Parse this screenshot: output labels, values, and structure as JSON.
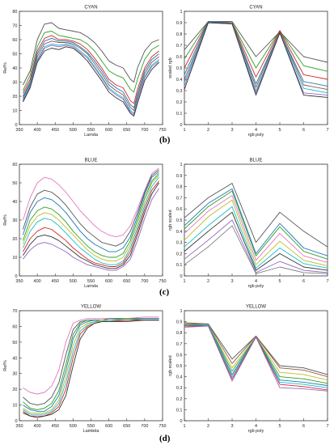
{
  "panel_labels": [
    "(b)",
    "(c)",
    "(d)"
  ],
  "chart_data": [
    {
      "type": "line",
      "title": "CYAN",
      "xlabel": "Lamda",
      "ylabel": "Ref%",
      "xlim": [
        350,
        750
      ],
      "ylim": [
        0,
        80
      ],
      "xticks": [
        350,
        400,
        450,
        500,
        550,
        600,
        650,
        700,
        750
      ],
      "yticks": [
        0,
        10,
        20,
        30,
        40,
        50,
        60,
        70,
        80
      ],
      "x": [
        360,
        380,
        400,
        420,
        440,
        460,
        480,
        500,
        520,
        540,
        560,
        580,
        600,
        620,
        640,
        660,
        670,
        680,
        700,
        720,
        740
      ],
      "series": [
        {
          "color": "#555555",
          "values": [
            28,
            38,
            60,
            71,
            72,
            68,
            67,
            66,
            65,
            62,
            58,
            52,
            45,
            42,
            40,
            32,
            30,
            40,
            52,
            58,
            60
          ]
        },
        {
          "color": "#2ca02c",
          "values": [
            24,
            35,
            55,
            65,
            66,
            63,
            62,
            61,
            60,
            57,
            52,
            45,
            38,
            35,
            33,
            25,
            23,
            32,
            46,
            53,
            56
          ]
        },
        {
          "color": "#d62728",
          "values": [
            22,
            32,
            52,
            61,
            63,
            60,
            60,
            59,
            57,
            53,
            47,
            40,
            32,
            28,
            26,
            17,
            15,
            25,
            40,
            48,
            52
          ]
        },
        {
          "color": "#1f77b4",
          "values": [
            20,
            30,
            50,
            59,
            61,
            59,
            59,
            58,
            55,
            51,
            45,
            38,
            30,
            26,
            23,
            14,
            12,
            22,
            38,
            46,
            50
          ]
        },
        {
          "color": "#8c564b",
          "values": [
            19,
            29,
            48,
            57,
            59,
            58,
            58,
            57,
            54,
            50,
            43,
            36,
            28,
            24,
            21,
            12,
            10,
            20,
            36,
            44,
            48
          ]
        },
        {
          "color": "#17becf",
          "values": [
            18,
            28,
            46,
            55,
            57,
            56,
            57,
            56,
            52,
            48,
            41,
            34,
            26,
            22,
            19,
            10,
            8,
            18,
            34,
            42,
            46
          ]
        },
        {
          "color": "#9467bd",
          "values": [
            17,
            27,
            45,
            54,
            56,
            55,
            56,
            55,
            51,
            47,
            40,
            33,
            25,
            21,
            18,
            9,
            7,
            17,
            33,
            41,
            45
          ]
        },
        {
          "color": "#333333",
          "values": [
            16,
            26,
            44,
            52,
            54,
            53,
            55,
            54,
            50,
            45,
            38,
            31,
            23,
            19,
            16,
            8,
            6,
            15,
            31,
            39,
            44
          ]
        }
      ]
    },
    {
      "type": "line",
      "title": "CYAN",
      "xlabel": "rgb poly",
      "ylabel": "scaled rgb",
      "xlim": [
        1,
        7
      ],
      "ylim": [
        0,
        1
      ],
      "xticks": [
        1,
        2,
        3,
        4,
        5,
        6,
        7
      ],
      "yticks": [
        0,
        0.1,
        0.2,
        0.3,
        0.4,
        0.5,
        0.6,
        0.7,
        0.8,
        0.9,
        1
      ],
      "x": [
        1,
        2,
        3,
        4,
        5,
        6,
        7
      ],
      "series": [
        {
          "color": "#555555",
          "values": [
            0.66,
            0.91,
            0.91,
            0.6,
            0.82,
            0.6,
            0.55
          ]
        },
        {
          "color": "#2ca02c",
          "values": [
            0.58,
            0.91,
            0.9,
            0.5,
            0.83,
            0.52,
            0.47
          ]
        },
        {
          "color": "#d62728",
          "values": [
            0.5,
            0.91,
            0.9,
            0.42,
            0.83,
            0.44,
            0.4
          ]
        },
        {
          "color": "#1f77b4",
          "values": [
            0.44,
            0.91,
            0.9,
            0.36,
            0.82,
            0.38,
            0.34
          ]
        },
        {
          "color": "#8c564b",
          "values": [
            0.4,
            0.9,
            0.9,
            0.33,
            0.82,
            0.35,
            0.31
          ]
        },
        {
          "color": "#17becf",
          "values": [
            0.37,
            0.9,
            0.89,
            0.3,
            0.81,
            0.32,
            0.28
          ]
        },
        {
          "color": "#9467bd",
          "values": [
            0.34,
            0.9,
            0.89,
            0.28,
            0.81,
            0.28,
            0.26
          ]
        },
        {
          "color": "#333333",
          "values": [
            0.31,
            0.9,
            0.89,
            0.26,
            0.81,
            0.26,
            0.24
          ]
        }
      ]
    },
    {
      "type": "line",
      "title": "BLUE",
      "xlabel": "Lamda",
      "ylabel": "Ref%",
      "xlim": [
        350,
        750
      ],
      "ylim": [
        0,
        60
      ],
      "xticks": [
        350,
        400,
        450,
        500,
        550,
        600,
        650,
        700,
        750
      ],
      "yticks": [
        0,
        10,
        20,
        30,
        40,
        50,
        60
      ],
      "x": [
        360,
        380,
        400,
        420,
        440,
        460,
        480,
        500,
        520,
        540,
        560,
        580,
        600,
        620,
        640,
        660,
        680,
        700,
        720,
        740
      ],
      "series": [
        {
          "color": "#e377c2",
          "values": [
            30,
            42,
            50,
            53,
            52,
            49,
            45,
            40,
            35,
            31,
            27,
            24,
            22,
            21,
            22,
            27,
            36,
            46,
            55,
            58
          ]
        },
        {
          "color": "#555555",
          "values": [
            25,
            37,
            44,
            46,
            45,
            42,
            38,
            33,
            28,
            24,
            21,
            18,
            17,
            16,
            18,
            24,
            34,
            45,
            54,
            57
          ]
        },
        {
          "color": "#1f77b4",
          "values": [
            22,
            34,
            40,
            42,
            41,
            38,
            34,
            29,
            24,
            20,
            17,
            15,
            13,
            13,
            15,
            21,
            32,
            44,
            53,
            56
          ]
        },
        {
          "color": "#2ca02c",
          "values": [
            19,
            30,
            35,
            37,
            36,
            33,
            29,
            24,
            20,
            16,
            13,
            11,
            10,
            10,
            12,
            19,
            30,
            42,
            51,
            55
          ]
        },
        {
          "color": "#bcbd22",
          "values": [
            17,
            27,
            32,
            34,
            33,
            30,
            26,
            22,
            18,
            14,
            11,
            9,
            8,
            8,
            10,
            17,
            28,
            40,
            50,
            54
          ]
        },
        {
          "color": "#17becf",
          "values": [
            15,
            24,
            29,
            31,
            30,
            27,
            23,
            19,
            15,
            12,
            9,
            7,
            6,
            6,
            8,
            15,
            26,
            38,
            48,
            53
          ]
        },
        {
          "color": "#d62728",
          "values": [
            13,
            20,
            24,
            26,
            25,
            22,
            19,
            15,
            12,
            9,
            7,
            6,
            5,
            5,
            7,
            13,
            24,
            36,
            46,
            51
          ]
        },
        {
          "color": "#333333",
          "values": [
            11,
            17,
            21,
            22,
            21,
            19,
            16,
            13,
            10,
            8,
            6,
            5,
            4,
            4,
            6,
            11,
            22,
            34,
            44,
            50
          ]
        },
        {
          "color": "#9467bd",
          "values": [
            9,
            14,
            17,
            18,
            17,
            15,
            13,
            10,
            8,
            6,
            5,
            4,
            3,
            3,
            5,
            9,
            19,
            31,
            41,
            47
          ]
        }
      ]
    },
    {
      "type": "line",
      "title": "BLUE",
      "xlabel": "rgb poly",
      "ylabel": "rgb scaled",
      "xlim": [
        1,
        7
      ],
      "ylim": [
        0,
        1
      ],
      "xticks": [
        1,
        2,
        3,
        4,
        5,
        6,
        7
      ],
      "yticks": [
        0,
        0.1,
        0.2,
        0.3,
        0.4,
        0.5,
        0.6,
        0.7,
        0.8,
        0.9,
        1
      ],
      "x": [
        1,
        2,
        3,
        4,
        5,
        6,
        7
      ],
      "series": [
        {
          "color": "#555555",
          "values": [
            0.52,
            0.7,
            0.83,
            0.3,
            0.57,
            0.4,
            0.26
          ]
        },
        {
          "color": "#1f77b4",
          "values": [
            0.45,
            0.65,
            0.78,
            0.2,
            0.47,
            0.25,
            0.18
          ]
        },
        {
          "color": "#2ca02c",
          "values": [
            0.42,
            0.62,
            0.76,
            0.18,
            0.44,
            0.22,
            0.15
          ]
        },
        {
          "color": "#e377c2",
          "values": [
            0.38,
            0.58,
            0.72,
            0.14,
            0.38,
            0.18,
            0.12
          ]
        },
        {
          "color": "#bcbd22",
          "values": [
            0.32,
            0.53,
            0.68,
            0.1,
            0.31,
            0.14,
            0.09
          ]
        },
        {
          "color": "#17becf",
          "values": [
            0.26,
            0.45,
            0.62,
            0.07,
            0.25,
            0.11,
            0.07
          ]
        },
        {
          "color": "#333333",
          "values": [
            0.22,
            0.4,
            0.57,
            0.05,
            0.2,
            0.08,
            0.05
          ]
        },
        {
          "color": "#9467bd",
          "values": [
            0.15,
            0.32,
            0.5,
            0.03,
            0.13,
            0.05,
            0.03
          ]
        },
        {
          "color": "#7f7f7f",
          "values": [
            0.1,
            0.26,
            0.45,
            0.02,
            0.08,
            0.03,
            0.02
          ]
        }
      ]
    },
    {
      "type": "line",
      "title": "YELLOW",
      "xlabel": "Lambda",
      "ylabel": "Ref%",
      "xlim": [
        350,
        750
      ],
      "ylim": [
        0,
        70
      ],
      "xticks": [
        350,
        400,
        450,
        500,
        550,
        600,
        650,
        700,
        750
      ],
      "yticks": [
        0,
        10,
        20,
        30,
        40,
        50,
        60,
        70
      ],
      "x": [
        360,
        380,
        400,
        420,
        440,
        460,
        480,
        500,
        520,
        540,
        560,
        580,
        600,
        650,
        700,
        740
      ],
      "series": [
        {
          "color": "#e377c2",
          "values": [
            21,
            18,
            17,
            18,
            22,
            32,
            50,
            62,
            64,
            65,
            65,
            65,
            65,
            65,
            66,
            66
          ]
        },
        {
          "color": "#555555",
          "values": [
            15,
            11,
            10,
            11,
            15,
            24,
            42,
            58,
            63,
            64,
            64,
            64,
            65,
            65,
            65,
            65
          ]
        },
        {
          "color": "#2ca02c",
          "values": [
            12,
            8,
            7,
            8,
            11,
            19,
            36,
            55,
            62,
            64,
            64,
            64,
            64,
            65,
            65,
            65
          ]
        },
        {
          "color": "#1f77b4",
          "values": [
            10,
            7,
            6,
            6,
            9,
            16,
            32,
            52,
            61,
            63,
            64,
            64,
            64,
            64,
            65,
            65
          ]
        },
        {
          "color": "#bcbd22",
          "values": [
            8,
            5,
            5,
            5,
            7,
            13,
            28,
            48,
            59,
            62,
            63,
            64,
            64,
            64,
            64,
            64
          ]
        },
        {
          "color": "#17becf",
          "values": [
            7,
            4,
            4,
            4,
            6,
            11,
            24,
            44,
            57,
            61,
            63,
            63,
            64,
            64,
            64,
            64
          ]
        },
        {
          "color": "#d62728",
          "values": [
            6,
            3,
            3,
            3,
            5,
            9,
            20,
            40,
            55,
            60,
            62,
            63,
            63,
            64,
            64,
            64
          ]
        },
        {
          "color": "#333333",
          "values": [
            5,
            3,
            2,
            3,
            4,
            7,
            16,
            35,
            52,
            59,
            62,
            63,
            63,
            63,
            64,
            64
          ]
        }
      ]
    },
    {
      "type": "line",
      "title": "YELLOW",
      "xlabel": "rgb poly",
      "ylabel": "rgb scaled",
      "xlim": [
        1,
        7
      ],
      "ylim": [
        0,
        1
      ],
      "xticks": [
        1,
        2,
        3,
        4,
        5,
        6,
        7
      ],
      "yticks": [
        0,
        0.1,
        0.2,
        0.3,
        0.4,
        0.5,
        0.6,
        0.7,
        0.8,
        0.9,
        1
      ],
      "x": [
        1,
        2,
        3,
        4,
        5,
        6,
        7
      ],
      "series": [
        {
          "color": "#555555",
          "values": [
            0.89,
            0.88,
            0.56,
            0.77,
            0.5,
            0.48,
            0.42
          ]
        },
        {
          "color": "#8c564b",
          "values": [
            0.88,
            0.88,
            0.52,
            0.77,
            0.48,
            0.46,
            0.4
          ]
        },
        {
          "color": "#bcbd22",
          "values": [
            0.88,
            0.87,
            0.48,
            0.76,
            0.44,
            0.42,
            0.37
          ]
        },
        {
          "color": "#2ca02c",
          "values": [
            0.87,
            0.87,
            0.45,
            0.76,
            0.4,
            0.38,
            0.34
          ]
        },
        {
          "color": "#1f77b4",
          "values": [
            0.87,
            0.87,
            0.42,
            0.76,
            0.37,
            0.35,
            0.32
          ]
        },
        {
          "color": "#17becf",
          "values": [
            0.86,
            0.87,
            0.4,
            0.76,
            0.35,
            0.33,
            0.3
          ]
        },
        {
          "color": "#d62728",
          "values": [
            0.86,
            0.86,
            0.38,
            0.76,
            0.33,
            0.31,
            0.28
          ]
        },
        {
          "color": "#9467bd",
          "values": [
            0.85,
            0.86,
            0.36,
            0.76,
            0.3,
            0.29,
            0.27
          ]
        }
      ]
    }
  ]
}
